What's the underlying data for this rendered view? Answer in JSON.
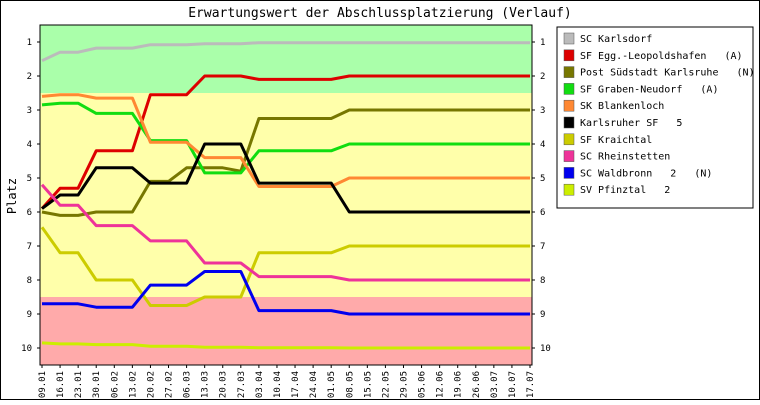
{
  "chart_data": {
    "type": "line",
    "title": "Erwartungswert der Abschlussplatzierung (Verlauf)",
    "ylabel": "Platz",
    "xlabel": "",
    "ylim": [
      10.5,
      0.5
    ],
    "y_inverted": true,
    "y_ticks": [
      1,
      2,
      3,
      4,
      5,
      6,
      7,
      8,
      9,
      10
    ],
    "categories": [
      "09.01",
      "16.01",
      "23.01",
      "30.01",
      "06.02",
      "13.02",
      "20.02",
      "27.02",
      "06.03",
      "13.03",
      "20.03",
      "27.03",
      "03.04",
      "10.04",
      "17.04",
      "24.04",
      "01.05",
      "08.05",
      "15.05",
      "22.05",
      "29.05",
      "05.06",
      "12.06",
      "19.06",
      "26.06",
      "03.07",
      "10.07",
      "17.07"
    ],
    "bands": [
      {
        "from": 0.5,
        "to": 2.5,
        "color": "#aaffaa"
      },
      {
        "from": 2.5,
        "to": 8.5,
        "color": "#ffffaa"
      },
      {
        "from": 8.5,
        "to": 10.5,
        "color": "#ffaaaa"
      }
    ],
    "series": [
      {
        "name": "SC Karlsdorf",
        "color": "#bbbbbb",
        "values": [
          1.55,
          1.3,
          1.3,
          1.18,
          1.18,
          1.18,
          1.08,
          1.08,
          1.08,
          1.05,
          1.05,
          1.05,
          1.02,
          1.02,
          1.02,
          1.02,
          1.02,
          1.02,
          1.02,
          1.02,
          1.02,
          1.02,
          1.02,
          1.02,
          1.02,
          1.02,
          1.02,
          1.02
        ]
      },
      {
        "name": "SF Egg.-Leopoldshafen   (A)",
        "color": "#dd0000",
        "values": [
          5.9,
          5.3,
          5.3,
          4.2,
          4.2,
          4.2,
          2.55,
          2.55,
          2.55,
          2.0,
          2.0,
          2.0,
          2.1,
          2.1,
          2.1,
          2.1,
          2.1,
          2.0,
          2.0,
          2.0,
          2.0,
          2.0,
          2.0,
          2.0,
          2.0,
          2.0,
          2.0,
          2.0
        ]
      },
      {
        "name": "Post Südstadt Karlsruhe   (N)",
        "color": "#777700",
        "values": [
          6.0,
          6.1,
          6.1,
          6.0,
          6.0,
          6.0,
          5.1,
          5.1,
          4.7,
          4.7,
          4.7,
          4.8,
          3.25,
          3.25,
          3.25,
          3.25,
          3.25,
          3.0,
          3.0,
          3.0,
          3.0,
          3.0,
          3.0,
          3.0,
          3.0,
          3.0,
          3.0,
          3.0
        ]
      },
      {
        "name": "SF Graben-Neudorf   (A)",
        "color": "#11dd11",
        "values": [
          2.85,
          2.8,
          2.8,
          3.1,
          3.1,
          3.1,
          3.9,
          3.9,
          3.9,
          4.85,
          4.85,
          4.85,
          4.2,
          4.2,
          4.2,
          4.2,
          4.2,
          4.0,
          4.0,
          4.0,
          4.0,
          4.0,
          4.0,
          4.0,
          4.0,
          4.0,
          4.0,
          4.0
        ]
      },
      {
        "name": "SK Blankenloch",
        "color": "#ff8833",
        "values": [
          2.6,
          2.55,
          2.55,
          2.65,
          2.65,
          2.65,
          3.95,
          3.95,
          3.95,
          4.4,
          4.4,
          4.4,
          5.25,
          5.25,
          5.25,
          5.25,
          5.25,
          5.0,
          5.0,
          5.0,
          5.0,
          5.0,
          5.0,
          5.0,
          5.0,
          5.0,
          5.0,
          5.0
        ]
      },
      {
        "name": "Karlsruher SF   5",
        "color": "#000000",
        "values": [
          5.9,
          5.5,
          5.5,
          4.7,
          4.7,
          4.7,
          5.15,
          5.15,
          5.15,
          4.0,
          4.0,
          4.0,
          5.15,
          5.15,
          5.15,
          5.15,
          5.15,
          6.0,
          6.0,
          6.0,
          6.0,
          6.0,
          6.0,
          6.0,
          6.0,
          6.0,
          6.0,
          6.0
        ]
      },
      {
        "name": "SF Kraichtal",
        "color": "#cccc00",
        "values": [
          6.45,
          7.2,
          7.2,
          8.0,
          8.0,
          8.0,
          8.75,
          8.75,
          8.75,
          8.5,
          8.5,
          8.5,
          7.2,
          7.2,
          7.2,
          7.2,
          7.2,
          7.0,
          7.0,
          7.0,
          7.0,
          7.0,
          7.0,
          7.0,
          7.0,
          7.0,
          7.0,
          7.0
        ]
      },
      {
        "name": "SC Rheinstetten",
        "color": "#ee3399",
        "values": [
          5.2,
          5.8,
          5.8,
          6.4,
          6.4,
          6.4,
          6.85,
          6.85,
          6.85,
          7.5,
          7.5,
          7.5,
          7.9,
          7.9,
          7.9,
          7.9,
          7.9,
          8.0,
          8.0,
          8.0,
          8.0,
          8.0,
          8.0,
          8.0,
          8.0,
          8.0,
          8.0,
          8.0
        ]
      },
      {
        "name": "SC Waldbronn   2   (N)",
        "color": "#0000ee",
        "values": [
          8.7,
          8.7,
          8.7,
          8.8,
          8.8,
          8.8,
          8.15,
          8.15,
          8.15,
          7.75,
          7.75,
          7.75,
          8.9,
          8.9,
          8.9,
          8.9,
          8.9,
          9.0,
          9.0,
          9.0,
          9.0,
          9.0,
          9.0,
          9.0,
          9.0,
          9.0,
          9.0,
          9.0
        ]
      },
      {
        "name": "SV Pfinztal   2",
        "color": "#ccee00",
        "values": [
          9.85,
          9.88,
          9.88,
          9.9,
          9.9,
          9.9,
          9.95,
          9.95,
          9.95,
          9.98,
          9.98,
          9.98,
          9.99,
          9.99,
          9.99,
          9.99,
          9.99,
          10.0,
          10.0,
          10.0,
          10.0,
          10.0,
          10.0,
          10.0,
          10.0,
          10.0,
          10.0,
          10.0
        ]
      }
    ],
    "grid": false,
    "legend_position": "right"
  }
}
